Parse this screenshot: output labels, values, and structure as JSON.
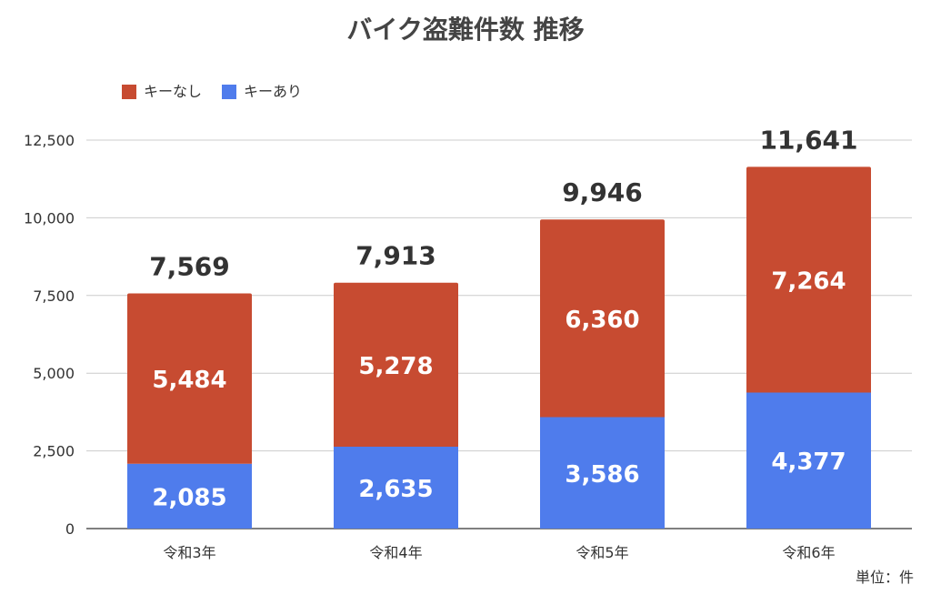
{
  "chart_data": {
    "type": "bar",
    "stacked": true,
    "title": "バイク盗難件数 推移",
    "categories": [
      "令和3年",
      "令和4年",
      "令和5年",
      "令和6年"
    ],
    "series": [
      {
        "name": "キーあり",
        "color": "#4f7cec",
        "values": [
          2085,
          2635,
          3586,
          4377
        ],
        "labels": [
          "2,085",
          "2,635",
          "3,586",
          "4,377"
        ]
      },
      {
        "name": "キーなし",
        "color": "#c74b31",
        "values": [
          5484,
          5278,
          6360,
          7264
        ],
        "labels": [
          "5,484",
          "5,278",
          "6,360",
          "7,264"
        ]
      }
    ],
    "totals": [
      "7,569",
      "7,913",
      "9,946",
      "11,641"
    ],
    "legend_order": [
      "キーなし",
      "キーあり"
    ],
    "legend_position": "top-left",
    "yticks": [
      0,
      2500,
      5000,
      7500,
      10000,
      12500
    ],
    "ytick_labels": [
      "0",
      "2,500",
      "5,000",
      "7,500",
      "10,000",
      "12,500"
    ],
    "ylim": [
      0,
      12500
    ],
    "grid": true,
    "unit_note": "単位：件"
  }
}
